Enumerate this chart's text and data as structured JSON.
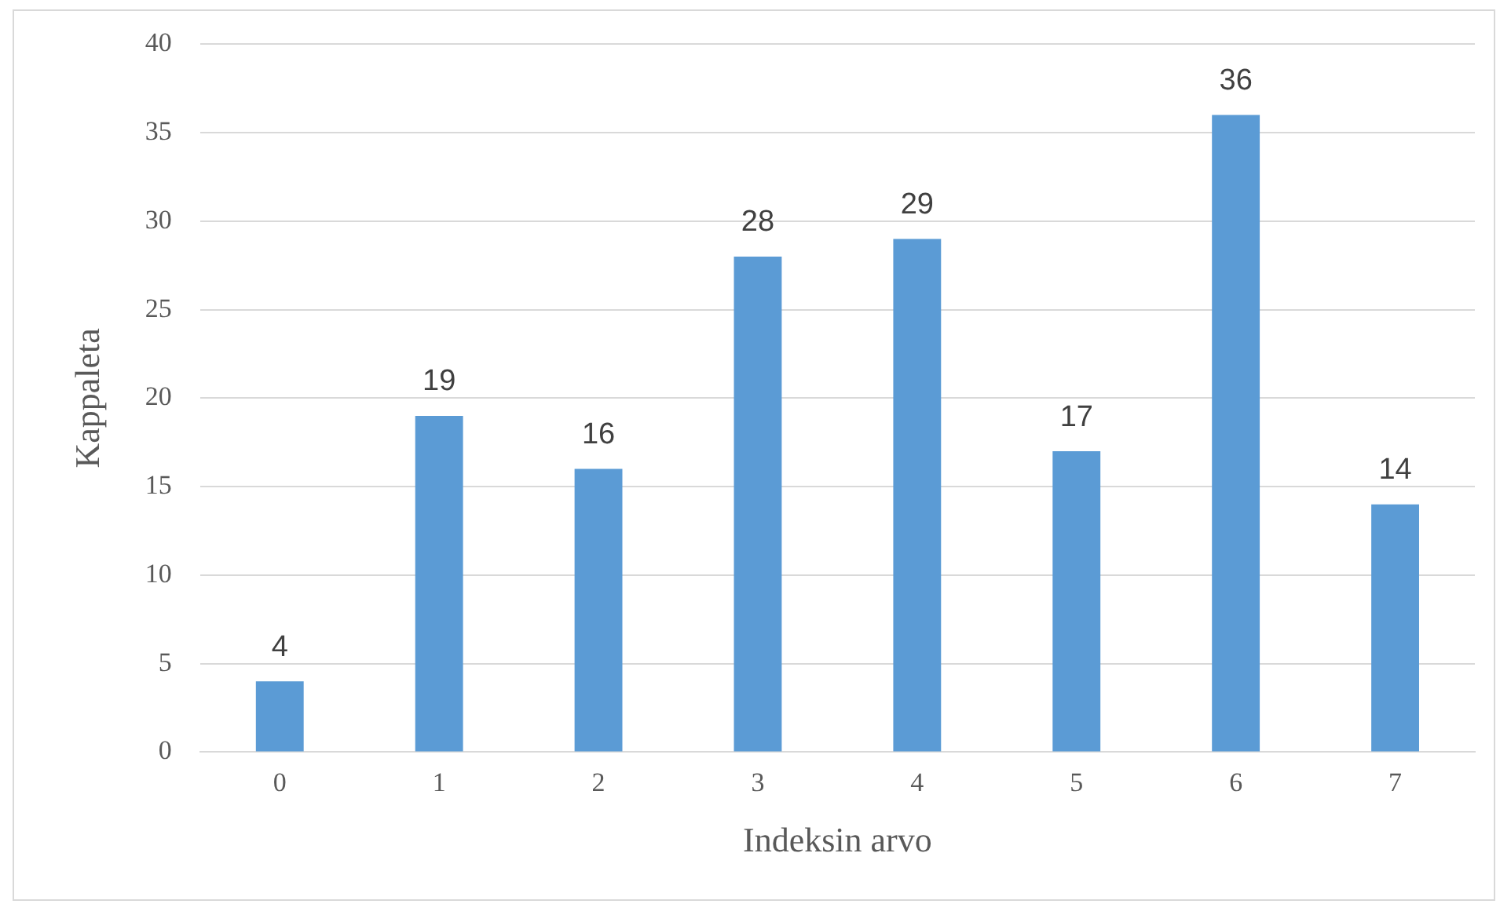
{
  "chart_data": {
    "type": "bar",
    "xlabel": "Indeksin arvo",
    "ylabel": "Kappaleta",
    "categories": [
      "0",
      "1",
      "2",
      "3",
      "4",
      "5",
      "6",
      "7"
    ],
    "values": [
      4,
      19,
      16,
      28,
      29,
      17,
      36,
      14
    ],
    "color": "#5b9bd5",
    "ylim": [
      0,
      40
    ],
    "yticks": [
      0,
      5,
      10,
      15,
      20,
      25,
      30,
      35,
      40
    ],
    "grid": "y",
    "data_labels": true,
    "legend": false
  }
}
